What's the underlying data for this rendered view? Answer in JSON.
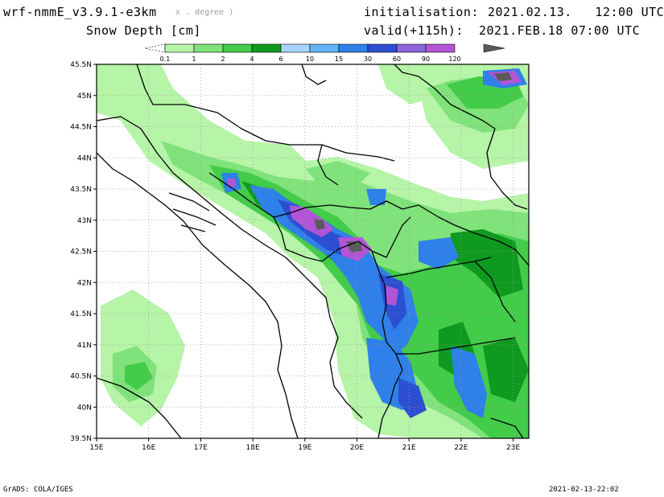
{
  "header": {
    "model": "wrf-nmmE_v3.9.1-e3km",
    "model_unit": "x . degree )",
    "variable": "Snow Depth [cm]",
    "init_label": "initialisation:",
    "init_value": "2021.02.13.   12:00 UTC",
    "valid_label": "valid(+115h):",
    "valid_value": "2021.FEB.18 07:00 UTC"
  },
  "colorbar": {
    "ticks": [
      "0.1",
      "1",
      "2",
      "4",
      "6",
      "10",
      "15",
      "30",
      "60",
      "90",
      "120"
    ],
    "colors": [
      "#ffffff",
      "#b6f4a7",
      "#7fe27a",
      "#43cb4a",
      "#0e9a1f",
      "#a7d5ff",
      "#62b3f8",
      "#2f80e8",
      "#2c4fd2",
      "#8c64dc",
      "#b155d6",
      "#5a5a5a"
    ]
  },
  "map": {
    "lon_labels": [
      "15E",
      "16E",
      "17E",
      "18E",
      "19E",
      "20E",
      "21E",
      "22E",
      "23E"
    ],
    "lat_labels": [
      "45.5N",
      "45N",
      "44.5N",
      "44N",
      "43.5N",
      "43N",
      "42.5N",
      "42N",
      "41.5N",
      "41N",
      "40.5N",
      "40N",
      "39.5N"
    ],
    "lon_range": [
      15,
      23.3
    ],
    "lat_range": [
      39.5,
      45.5
    ],
    "coast_color": "#000000",
    "grid_color": "#999999"
  },
  "footer": {
    "left": "GrADS: COLA/IGES",
    "right": "2021-02-13-22:02"
  }
}
